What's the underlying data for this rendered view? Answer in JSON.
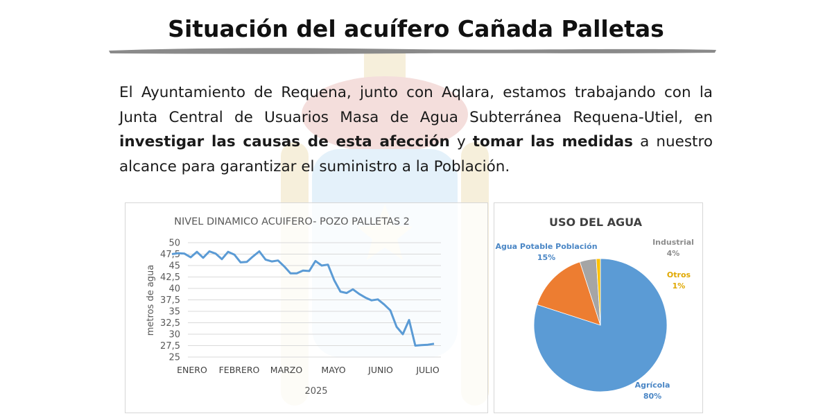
{
  "page": {
    "title": "Situación del acuífero Cañada Palletas",
    "paragraph": {
      "part1": "El Ayuntamiento de Requena, junto con Aqlara, estamos trabajando con la Junta Central de Usuarios Masa de Agua Subterránea Requena-Utiel, en",
      "bold1": "investigar las causas de esta afección",
      "part2": "y",
      "bold2": "tomar las medidas",
      "part3": "a nuestro alcance para garantizar el suministro a la Población."
    }
  },
  "chart_data": [
    {
      "type": "line",
      "title": "NIVEL DINAMICO ACUIFERO- POZO PALLETAS 2",
      "xlabel": "2025",
      "ylabel": "metros de agua",
      "ylim": [
        25,
        50
      ],
      "yticks": [
        "50",
        "47,5",
        "45",
        "42,5",
        "40",
        "37,5",
        "35",
        "32,5",
        "30",
        "27,5",
        "25"
      ],
      "xticks": [
        "ENERO",
        "FEBRERO",
        "MARZO",
        "MAYO",
        "JUNIO",
        "JULIO"
      ],
      "grid": true,
      "color": "#5b9bd5",
      "series": [
        {
          "values": [
            47.5,
            47.7,
            47.6,
            46.8,
            48.0,
            46.7,
            48.1,
            47.6,
            46.4,
            48.0,
            47.4,
            45.7,
            45.8,
            47.0,
            48.1,
            46.3,
            45.9,
            46.1,
            44.8,
            43.3,
            43.3,
            43.9,
            43.8,
            46.0,
            45.0,
            45.2,
            41.8,
            39.3,
            39.0,
            39.8,
            38.8,
            38.0,
            37.4,
            37.6,
            36.5,
            35.2,
            31.6,
            30.0,
            33.1,
            27.5,
            27.6,
            27.7,
            27.9
          ]
        }
      ]
    },
    {
      "type": "pie",
      "title": "USO DEL AGUA",
      "slices": [
        {
          "label": "Agrícola",
          "value": 80,
          "pct_label": "80%",
          "color": "#5b9bd5"
        },
        {
          "label": "Agua Potable Población",
          "value": 15,
          "pct_label": "15%",
          "color": "#ed7d31"
        },
        {
          "label": "Industrial",
          "value": 4,
          "pct_label": "4%",
          "color": "#a5a5a5"
        },
        {
          "label": "Otros",
          "value": 1,
          "pct_label": "1%",
          "color": "#ffc000"
        }
      ]
    }
  ]
}
